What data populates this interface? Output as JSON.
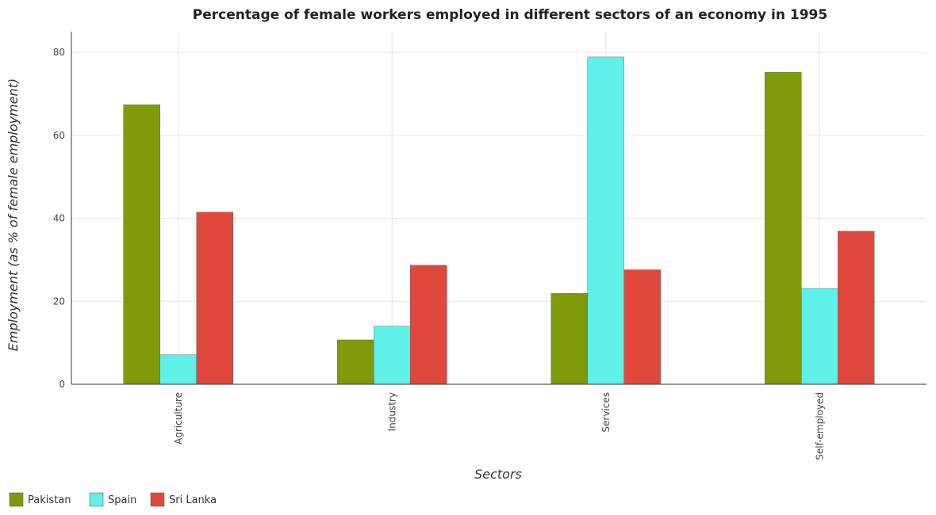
{
  "chart_data": {
    "type": "bar",
    "title": "Percentage of female workers employed in different sectors of an economy in 1995",
    "xlabel": "Sectors",
    "ylabel": "Employment (as % of female employment)",
    "categories": [
      "Agriculture",
      "Industry",
      "Services",
      "Self-employed"
    ],
    "series": [
      {
        "name": "Pakistan",
        "color": "#7f9a0b",
        "values": [
          67.4,
          10.7,
          21.9,
          75.2
        ]
      },
      {
        "name": "Spain",
        "color": "#5ff0e9",
        "values": [
          7.1,
          14.0,
          78.9,
          23.1
        ]
      },
      {
        "name": "Sri Lanka",
        "color": "#e0483d",
        "values": [
          41.5,
          28.7,
          27.6,
          36.9
        ]
      }
    ],
    "ylim": [
      0,
      85
    ],
    "yticks": [
      0,
      20,
      40,
      60,
      80
    ],
    "grid": true,
    "legend_position": "bottom-left"
  }
}
